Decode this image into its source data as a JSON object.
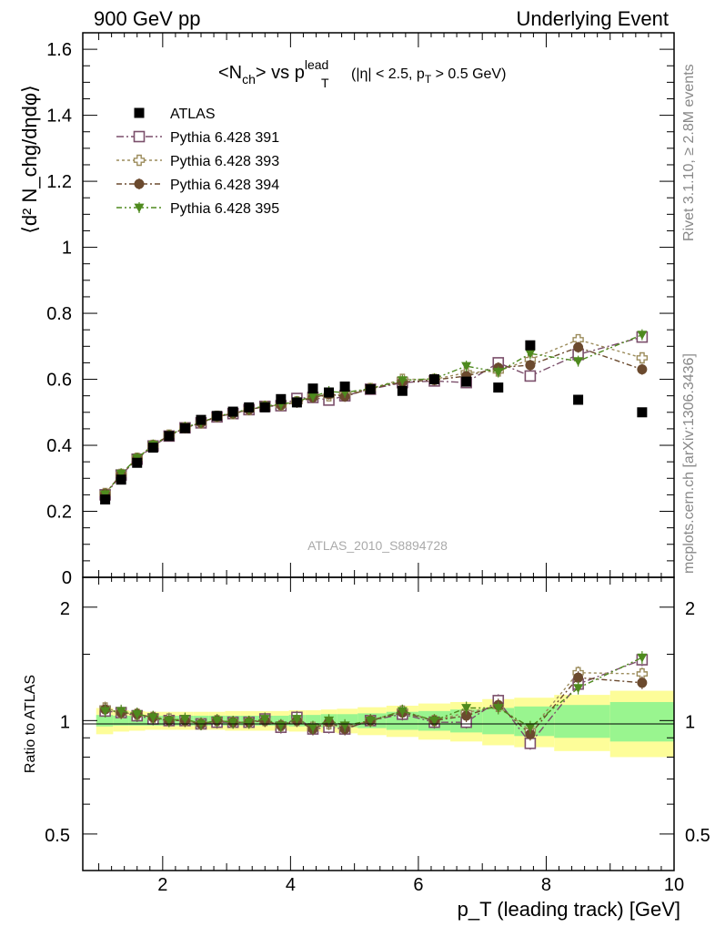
{
  "header": {
    "left": "900 GeV pp",
    "right": "Underlying Event"
  },
  "side": {
    "top": "Rivet 3.1.10, ≥ 2.8M events",
    "bottom": "mcplots.cern.ch [arXiv:1306.3436]"
  },
  "main": {
    "title_prefix": "<N",
    "title_sub1": "ch",
    "title_mid": "> vs p",
    "title_sup": "lead",
    "title_sub2": "T",
    "title_cut_a": "(|η| < 2.5, p",
    "title_cut_sub": "T",
    "title_cut_b": " > 0.5 GeV)",
    "ylabel": "⟨d² N_chg/dηdφ⟩",
    "watermark": "ATLAS_2010_S8894728"
  },
  "ratio": {
    "ylabel": "Ratio to ATLAS",
    "xlabel": "p_T (leading track) [GeV]"
  },
  "colors": {
    "atlas": "#000000",
    "p391": "#7b4f6b",
    "p393": "#9c8c5c",
    "p394": "#6b4a2e",
    "p395": "#4e8a1e",
    "band_inner": "#99f58f",
    "band_outer": "#fdfd99"
  },
  "chart_data": [
    {
      "type": "scatter",
      "title": "<N_ch> vs p_T^lead (|η| < 2.5, p_T > 0.5 GeV)",
      "xlabel": "p_T (leading track) [GeV]",
      "ylabel": "⟨d² N_chg/dηdφ⟩",
      "xlim": [
        0.75,
        10
      ],
      "ylim": [
        0,
        1.65
      ],
      "x": [
        1.1,
        1.35,
        1.6,
        1.85,
        2.1,
        2.35,
        2.6,
        2.85,
        3.1,
        3.35,
        3.6,
        3.85,
        4.1,
        4.35,
        4.6,
        4.85,
        5.25,
        5.75,
        6.25,
        6.75,
        7.25,
        7.75,
        8.5,
        9.5
      ],
      "series": [
        {
          "name": "ATLAS",
          "values": [
            0.236,
            0.296,
            0.347,
            0.393,
            0.428,
            0.452,
            0.477,
            0.489,
            0.502,
            0.515,
            0.515,
            0.54,
            0.53,
            0.572,
            0.56,
            0.578,
            0.57,
            0.565,
            0.6,
            0.593,
            0.575,
            0.703,
            0.538,
            0.5
          ]
        },
        {
          "name": "Pythia 6.428 391",
          "values": [
            0.25,
            0.31,
            0.358,
            0.398,
            0.428,
            0.453,
            0.468,
            0.486,
            0.496,
            0.508,
            0.518,
            0.52,
            0.542,
            0.545,
            0.537,
            0.55,
            0.57,
            0.59,
            0.595,
            0.59,
            0.65,
            0.61,
            0.675,
            0.728
          ]
        },
        {
          "name": "Pythia 6.428 393",
          "values": [
            0.254,
            0.312,
            0.361,
            0.4,
            0.431,
            0.453,
            0.468,
            0.488,
            0.496,
            0.508,
            0.518,
            0.522,
            0.532,
            0.548,
            0.55,
            0.555,
            0.572,
            0.6,
            0.6,
            0.62,
            0.625,
            0.66,
            0.72,
            0.665
          ]
        },
        {
          "name": "Pythia 6.428 394",
          "values": [
            0.253,
            0.312,
            0.36,
            0.4,
            0.43,
            0.453,
            0.468,
            0.488,
            0.496,
            0.508,
            0.518,
            0.522,
            0.53,
            0.545,
            0.555,
            0.548,
            0.572,
            0.592,
            0.598,
            0.61,
            0.635,
            0.643,
            0.697,
            0.63
          ]
        },
        {
          "name": "Pythia 6.428 395",
          "values": [
            0.251,
            0.314,
            0.361,
            0.401,
            0.43,
            0.455,
            0.469,
            0.488,
            0.498,
            0.51,
            0.519,
            0.524,
            0.533,
            0.548,
            0.563,
            0.56,
            0.572,
            0.597,
            0.602,
            0.64,
            0.622,
            0.678,
            0.655,
            0.735
          ]
        }
      ],
      "legend": "top-left"
    },
    {
      "type": "scatter",
      "title": "",
      "xlabel": "p_T (leading track) [GeV]",
      "ylabel": "Ratio to ATLAS",
      "xlim": [
        0.75,
        10
      ],
      "ylim": [
        0.4,
        2.4
      ],
      "yscale": "log",
      "x": [
        1.1,
        1.35,
        1.6,
        1.85,
        2.1,
        2.35,
        2.6,
        2.85,
        3.1,
        3.35,
        3.6,
        3.85,
        4.1,
        4.35,
        4.6,
        4.85,
        5.25,
        5.75,
        6.25,
        6.75,
        7.25,
        7.75,
        8.5,
        9.5
      ],
      "series": [
        {
          "name": "Pythia 6.428 391",
          "values": [
            1.06,
            1.05,
            1.03,
            1.01,
            1.0,
            1.0,
            0.98,
            0.99,
            0.99,
            0.99,
            1.01,
            0.96,
            1.02,
            0.95,
            0.96,
            0.95,
            1.0,
            1.04,
            0.99,
            0.99,
            1.13,
            0.87,
            1.25,
            1.45
          ]
        },
        {
          "name": "Pythia 6.428 393",
          "values": [
            1.08,
            1.05,
            1.04,
            1.02,
            1.01,
            1.0,
            0.98,
            1.0,
            0.99,
            0.99,
            1.0,
            0.97,
            1.0,
            0.96,
            0.98,
            0.96,
            1.0,
            1.06,
            1.0,
            1.05,
            1.09,
            0.94,
            1.34,
            1.33
          ]
        },
        {
          "name": "Pythia 6.428 394",
          "values": [
            1.07,
            1.05,
            1.04,
            1.02,
            1.0,
            1.0,
            0.98,
            1.0,
            0.99,
            0.99,
            1.0,
            0.97,
            1.0,
            0.95,
            0.99,
            0.95,
            1.0,
            1.05,
            1.0,
            1.03,
            1.1,
            0.92,
            1.3,
            1.26
          ]
        },
        {
          "name": "Pythia 6.428 395",
          "values": [
            1.06,
            1.06,
            1.04,
            1.02,
            1.0,
            1.01,
            0.98,
            1.0,
            0.99,
            0.99,
            1.01,
            0.97,
            1.01,
            0.96,
            1.0,
            0.97,
            1.0,
            1.06,
            1.0,
            1.08,
            1.08,
            0.96,
            1.22,
            1.47
          ]
        }
      ]
    }
  ]
}
